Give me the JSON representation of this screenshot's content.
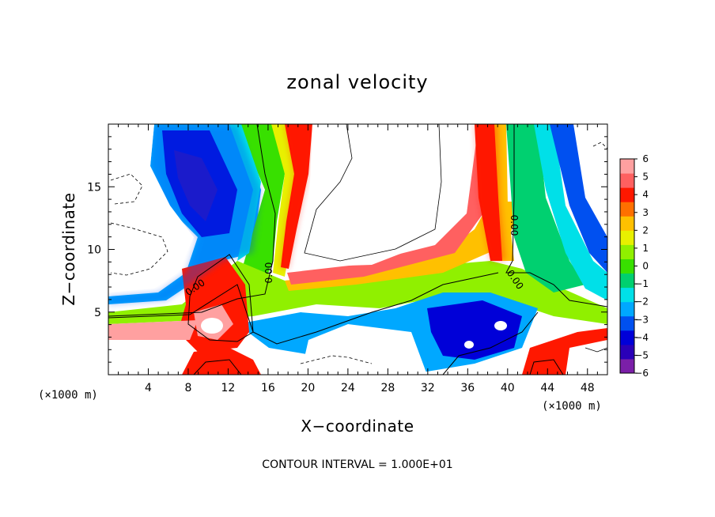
{
  "chart_data": {
    "type": "heatmap",
    "title": "zonal velocity",
    "xlabel": "X−coordinate",
    "ylabel": "Z−coordinate",
    "x_unit": "(×1000 m)",
    "y_unit": "(×1000 m)",
    "xlim": [
      0,
      50
    ],
    "ylim": [
      0,
      20
    ],
    "x_ticks": [
      4,
      8,
      12,
      16,
      20,
      24,
      28,
      32,
      36,
      40,
      44,
      48
    ],
    "y_ticks": [
      5,
      10,
      15
    ],
    "colorbar": {
      "ticks": [
        "6",
        "5",
        "4",
        "3",
        "2",
        "1",
        "0",
        "−1",
        "−2",
        "−3",
        "−4",
        "−5",
        "−6"
      ],
      "range": [
        -6,
        6
      ],
      "colors": [
        "#7b1fa8",
        "#2a00b8",
        "#0000d8",
        "#0050f0",
        "#00a8ff",
        "#00e0e8",
        "#00d070",
        "#38e000",
        "#90f000",
        "#e8f000",
        "#ffc000",
        "#ff7000",
        "#ff1800",
        "#ff6060",
        "#ffa0a0"
      ]
    },
    "contour_labels": [
      "0.00",
      "0.00",
      "0.00",
      "0.00"
    ],
    "contour_interval_text": "CONTOUR INTERVAL = 1.000E+01"
  }
}
